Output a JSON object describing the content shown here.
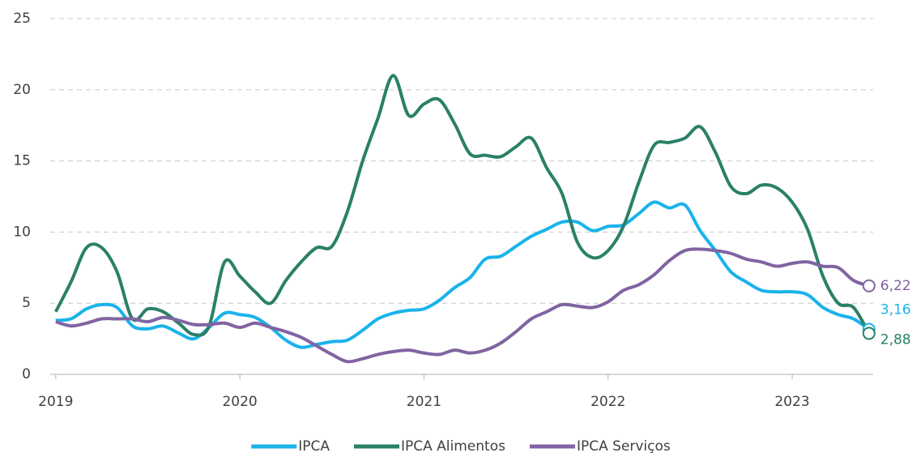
{
  "chart_data": {
    "type": "line",
    "x": [
      2019,
      2019.083,
      2019.167,
      2019.25,
      2019.333,
      2019.417,
      2019.5,
      2019.583,
      2019.667,
      2019.75,
      2019.833,
      2019.917,
      2020,
      2020.083,
      2020.167,
      2020.25,
      2020.333,
      2020.417,
      2020.5,
      2020.583,
      2020.667,
      2020.75,
      2020.833,
      2020.917,
      2021,
      2021.083,
      2021.167,
      2021.25,
      2021.333,
      2021.417,
      2021.5,
      2021.583,
      2021.667,
      2021.75,
      2021.833,
      2021.917,
      2022,
      2022.083,
      2022.167,
      2022.25,
      2022.333,
      2022.417,
      2022.5,
      2022.583,
      2022.667,
      2022.75,
      2022.833,
      2022.917,
      2023,
      2023.083,
      2023.167,
      2023.25,
      2023.333,
      2023.417
    ],
    "series": [
      {
        "name": "IPCA",
        "color": "#1ab3ea",
        "values": [
          3.8,
          3.9,
          4.6,
          4.9,
          4.7,
          3.4,
          3.2,
          3.4,
          2.9,
          2.5,
          3.3,
          4.3,
          4.2,
          4.0,
          3.3,
          2.4,
          1.9,
          2.1,
          2.3,
          2.4,
          3.1,
          3.9,
          4.3,
          4.5,
          4.6,
          5.2,
          6.1,
          6.8,
          8.1,
          8.3,
          9.0,
          9.7,
          10.2,
          10.7,
          10.7,
          10.1,
          10.4,
          10.5,
          11.3,
          12.1,
          11.7,
          11.9,
          10.1,
          8.7,
          7.2,
          6.5,
          5.9,
          5.8,
          5.8,
          5.6,
          4.7,
          4.2,
          3.9,
          3.16
        ],
        "value_labels": [
          null,
          null,
          null,
          null,
          null,
          null,
          null,
          null,
          null,
          null,
          null,
          null,
          null,
          null,
          null,
          null,
          null,
          null,
          null,
          null,
          null,
          null,
          null,
          null,
          null,
          null,
          null,
          null,
          null,
          null,
          null,
          null,
          null,
          null,
          null,
          null,
          null,
          null,
          null,
          null,
          null,
          null,
          null,
          null,
          null,
          null,
          null,
          null,
          null,
          null,
          null,
          null,
          null,
          "3,16"
        ]
      },
      {
        "name": "IPCA Alimentos",
        "color": "#2a8068",
        "values": [
          4.4,
          6.5,
          8.9,
          8.9,
          7.2,
          3.9,
          4.6,
          4.4,
          3.6,
          2.8,
          3.4,
          7.9,
          6.9,
          5.8,
          5.0,
          6.6,
          7.9,
          8.9,
          9.0,
          11.4,
          15.0,
          18.0,
          21.0,
          18.2,
          19.0,
          19.3,
          17.6,
          15.5,
          15.4,
          15.3,
          16.0,
          16.6,
          14.5,
          12.7,
          9.3,
          8.2,
          8.7,
          10.4,
          13.5,
          16.1,
          16.3,
          16.6,
          17.4,
          15.6,
          13.2,
          12.7,
          13.3,
          13.1,
          12.1,
          10.2,
          6.9,
          5.0,
          4.7,
          2.88
        ],
        "value_labels": [
          null,
          null,
          null,
          null,
          null,
          null,
          null,
          null,
          null,
          null,
          null,
          null,
          null,
          null,
          null,
          null,
          null,
          null,
          null,
          null,
          null,
          null,
          null,
          null,
          null,
          null,
          null,
          null,
          null,
          null,
          null,
          null,
          null,
          null,
          null,
          null,
          null,
          null,
          null,
          null,
          null,
          null,
          null,
          null,
          null,
          null,
          null,
          null,
          null,
          null,
          null,
          null,
          null,
          "2,88"
        ]
      },
      {
        "name": "IPCA Serviços",
        "color": "#8064a2",
        "values": [
          3.7,
          3.4,
          3.6,
          3.9,
          3.9,
          3.9,
          3.7,
          4.0,
          3.8,
          3.5,
          3.5,
          3.6,
          3.3,
          3.6,
          3.3,
          3.0,
          2.6,
          2.0,
          1.4,
          0.9,
          1.1,
          1.4,
          1.6,
          1.7,
          1.5,
          1.4,
          1.7,
          1.5,
          1.7,
          2.2,
          3.0,
          3.9,
          4.4,
          4.9,
          4.8,
          4.7,
          5.1,
          5.9,
          6.3,
          7.0,
          8.0,
          8.7,
          8.8,
          8.7,
          8.5,
          8.1,
          7.9,
          7.6,
          7.8,
          7.9,
          7.6,
          7.5,
          6.6,
          6.22
        ],
        "value_labels": [
          null,
          null,
          null,
          null,
          null,
          null,
          null,
          null,
          null,
          null,
          null,
          null,
          null,
          null,
          null,
          null,
          null,
          null,
          null,
          null,
          null,
          null,
          null,
          null,
          null,
          null,
          null,
          null,
          null,
          null,
          null,
          null,
          null,
          null,
          null,
          null,
          null,
          null,
          null,
          null,
          null,
          null,
          null,
          null,
          null,
          null,
          null,
          null,
          null,
          null,
          null,
          null,
          null,
          "6,22"
        ]
      }
    ],
    "xlim": [
      2018.97,
      2023.44
    ],
    "xticks": [
      2019,
      2020,
      2021,
      2022,
      2023
    ],
    "ylim": [
      0,
      25
    ],
    "yticks": [
      0,
      5,
      10,
      15,
      20,
      25
    ],
    "grid": true
  }
}
